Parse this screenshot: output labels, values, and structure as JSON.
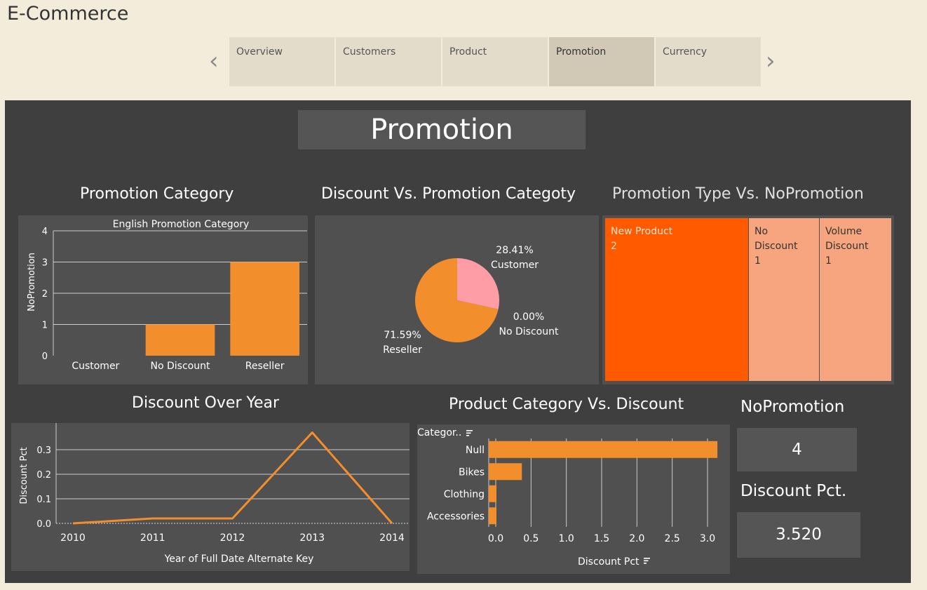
{
  "app": {
    "title": "E-Commerce"
  },
  "nav": {
    "prev_icon": "chevron-left-icon",
    "next_icon": "chevron-right-icon",
    "tabs": [
      {
        "label": "Overview",
        "active": false
      },
      {
        "label": "Customers",
        "active": false
      },
      {
        "label": "Product",
        "active": false
      },
      {
        "label": "Promotion",
        "active": true
      },
      {
        "label": "Currency",
        "active": false
      }
    ]
  },
  "dashboard": {
    "banner": "Promotion",
    "sections": {
      "promotion_category": "Promotion Category",
      "discount_vs_category": "Discount Vs. Promotion Categoty",
      "promotion_type": "Promotion Type Vs. NoPromotion",
      "discount_over_year": "Discount Over Year",
      "product_category": "Product Category Vs. Discount"
    },
    "kpis": {
      "nopromotion_label": "NoPromotion",
      "nopromotion_value": "4",
      "discount_label": "Discount Pct.",
      "discount_value": "3.520"
    },
    "colors": {
      "orange": "#f28e2b",
      "pink": "#ff9da7",
      "treemap_dark": "#ff5a00",
      "treemap_light": "#f6a57e",
      "background": "#3f3f3f",
      "panel": "#505050"
    }
  },
  "chart_data": [
    {
      "type": "bar",
      "title": "English Promotion Category",
      "categories": [
        "Customer",
        "No Discount",
        "Reseller"
      ],
      "values": [
        0,
        1,
        3
      ],
      "ylabel": "NoPromotion",
      "ylim": [
        0,
        4
      ],
      "yticks": [
        0,
        1,
        2,
        3,
        4
      ],
      "grid": true
    },
    {
      "type": "pie",
      "slices": [
        {
          "label": "Customer",
          "pct_label": "28.41%",
          "value": 28.41
        },
        {
          "label": "No Discount",
          "pct_label": "0.00%",
          "value": 0.0
        },
        {
          "label": "Reseller",
          "pct_label": "71.59%",
          "value": 71.59
        }
      ]
    },
    {
      "type": "treemap",
      "items": [
        {
          "label": "New Product",
          "value": 2
        },
        {
          "label": "No Discount",
          "value": 1
        },
        {
          "label": "Volume Discount",
          "value": 1
        }
      ]
    },
    {
      "type": "line",
      "x": [
        2010,
        2011,
        2012,
        2013,
        2014
      ],
      "series": [
        {
          "values": [
            0.0,
            0.02,
            0.02,
            0.37,
            0.0
          ]
        }
      ],
      "xlabel": "Year of Full Date Alternate Key",
      "ylabel": "Discount Pct",
      "ylim": [
        0,
        0.38
      ],
      "yticks": [
        "0.0",
        "0.1",
        "0.2",
        "0.3"
      ],
      "grid": true
    },
    {
      "type": "bar",
      "orientation": "horizontal",
      "axis_header": "Categor..",
      "categories": [
        "Null",
        "Bikes",
        "Clothing",
        "Accessories"
      ],
      "values": [
        3.14,
        0.37,
        0.01,
        0.01
      ],
      "xlabel": "Discount Pct",
      "xlim": [
        0,
        3.2
      ],
      "xticks": [
        "0.0",
        "0.5",
        "1.0",
        "1.5",
        "2.0",
        "2.5",
        "3.0"
      ],
      "grid": true
    }
  ]
}
